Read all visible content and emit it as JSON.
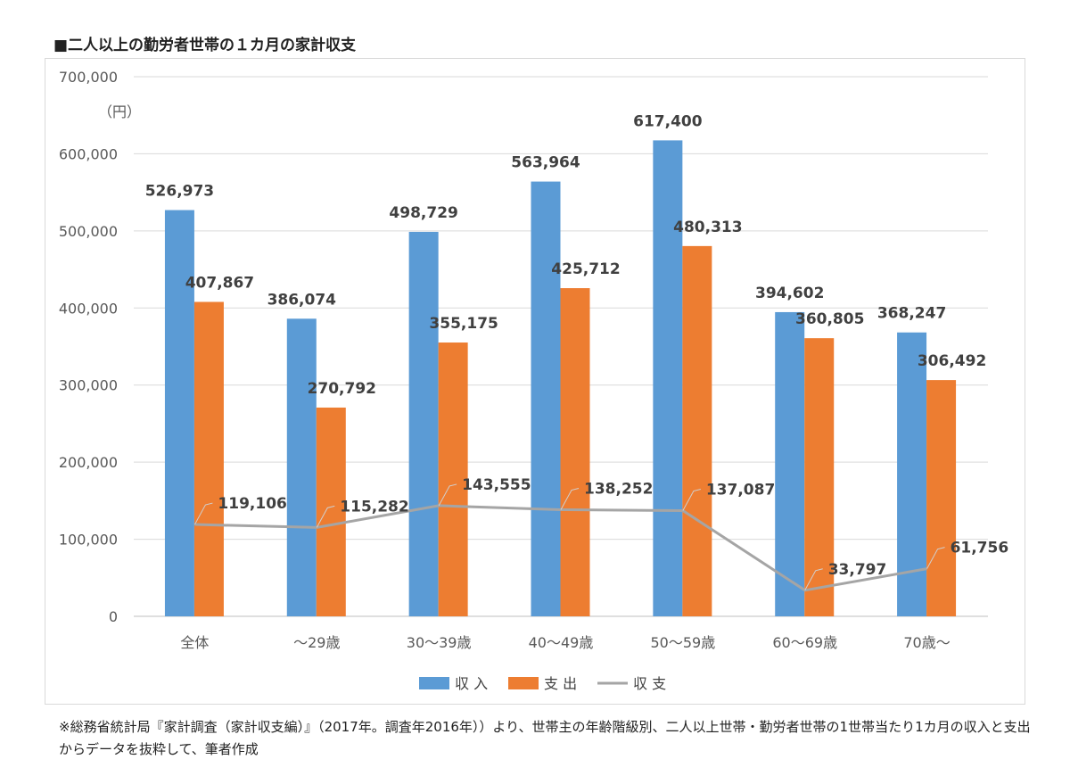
{
  "title": "■二人以上の勤労者世帯の１カ月の家計収支",
  "footnote": "※総務省統計局『家計調査（家計収支編）』（2017年。調査年2016年））より、世帯主の年齢階級別、二人以上世帯・勤労者世帯の1世帯当たり1カ月の収入と支出からデータを抜粋して、筆者作成",
  "chart_data": {
    "type": "bar",
    "unit_label": "（円）",
    "ylim": [
      0,
      700000
    ],
    "yticks": [
      0,
      100000,
      200000,
      300000,
      400000,
      500000,
      600000,
      700000
    ],
    "ytick_labels": [
      "0",
      "100,000",
      "200,000",
      "300,000",
      "400,000",
      "500,000",
      "600,000",
      "700,000"
    ],
    "categories": [
      "全体",
      "～29歳",
      "30～39歳",
      "40～49歳",
      "50～59歳",
      "60～69歳",
      "70歳～"
    ],
    "grid": true,
    "legend_position": "bottom",
    "series": [
      {
        "name": "収 入",
        "kind": "bar",
        "color": "#5b9bd5",
        "values": [
          526973,
          386074,
          498729,
          563964,
          617400,
          394602,
          368247
        ],
        "labels": [
          "526,973",
          "386,074",
          "498,729",
          "563,964",
          "617,400",
          "394,602",
          "368,247"
        ]
      },
      {
        "name": "支 出",
        "kind": "bar",
        "color": "#ed7d31",
        "values": [
          407867,
          270792,
          355175,
          425712,
          480313,
          360805,
          306492
        ],
        "labels": [
          "407,867",
          "270,792",
          "355,175",
          "425,712",
          "480,313",
          "360,805",
          "306,492"
        ]
      },
      {
        "name": "収 支",
        "kind": "line",
        "color": "#a5a5a5",
        "values": [
          119106,
          115282,
          143555,
          138252,
          137087,
          33797,
          61756
        ],
        "labels": [
          "119,106",
          "115,282",
          "143,555",
          "138,252",
          "137,087",
          "33,797",
          "61,756"
        ]
      }
    ]
  }
}
